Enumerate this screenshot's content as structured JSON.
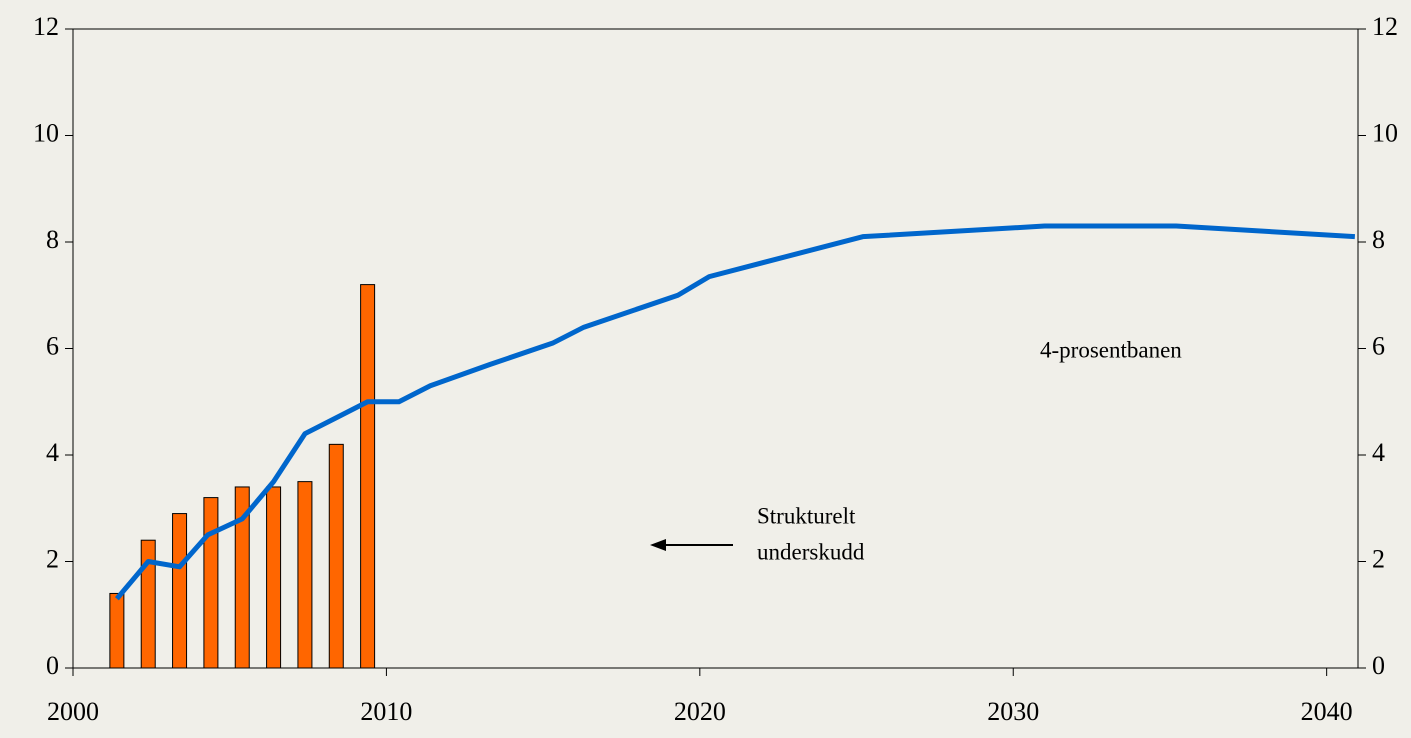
{
  "chart_data": {
    "type": "combo",
    "xlim": [
      2000,
      2041
    ],
    "xticks": [
      2000,
      2010,
      2020,
      2030,
      2040
    ],
    "ylim": [
      0,
      12
    ],
    "yticks": [
      0,
      2,
      4,
      6,
      8,
      10,
      12
    ],
    "y2lim": [
      0,
      12
    ],
    "y2ticks": [
      0,
      2,
      4,
      6,
      8,
      10,
      12
    ],
    "series": [
      {
        "type": "bar",
        "color": "#ff6600",
        "x": [
          2001.4,
          2002.4,
          2003.4,
          2004.4,
          2005.4,
          2006.4,
          2007.4,
          2008.4,
          2009.4
        ],
        "values": [
          1.4,
          2.4,
          2.9,
          3.2,
          3.4,
          3.4,
          3.5,
          4.2,
          7.2
        ]
      },
      {
        "type": "line",
        "color": "#0066cc",
        "axis": "y2",
        "x": [
          2001.4,
          2002.4,
          2003.4,
          2004.3,
          2005.4,
          2006.4,
          2007.4,
          2008.4,
          2009.4,
          2010.4,
          2011.4,
          2013.3,
          2015.3,
          2016.3,
          2019.3,
          2020.3,
          2025.2,
          2031.0,
          2035.2,
          2040.9
        ],
        "values": [
          1.3,
          2.0,
          1.9,
          2.5,
          2.8,
          3.5,
          4.4,
          4.7,
          5.0,
          5.0,
          5.3,
          5.7,
          6.1,
          6.4,
          7.0,
          7.35,
          8.1,
          8.3,
          8.3,
          8.1
        ]
      }
    ],
    "annotations": [
      {
        "lines": [
          "Strukturelt",
          "underskudd"
        ]
      },
      {
        "lines": [
          "4-prosentbanen"
        ]
      }
    ]
  }
}
